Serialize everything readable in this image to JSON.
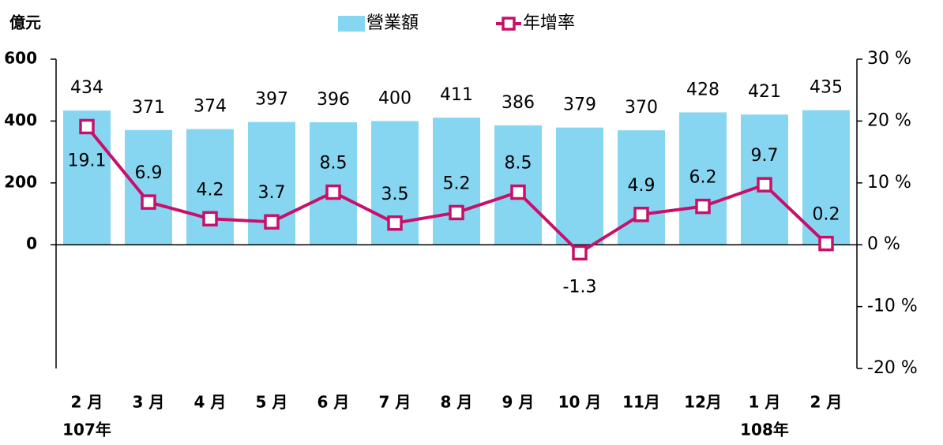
{
  "chart_data": {
    "type": "bar_line",
    "y_label": "億元",
    "categories": [
      "2 月",
      "3 月",
      "4 月",
      "5 月",
      "6 月",
      "7 月",
      "8 月",
      "9 月",
      "10 月",
      "11月",
      "12月",
      "1 月",
      "2 月"
    ],
    "year_labels": [
      "107年",
      null,
      null,
      null,
      null,
      null,
      null,
      null,
      null,
      null,
      null,
      "108年",
      null
    ],
    "series": [
      {
        "name": "營業額",
        "color": "#87d6f1",
        "values": [
          434,
          371,
          374,
          397,
          396,
          400,
          411,
          386,
          379,
          370,
          428,
          421,
          435
        ]
      },
      {
        "name": "年增率",
        "color": "#c8106a",
        "axis": "y2",
        "values": [
          19.1,
          6.9,
          4.2,
          3.7,
          8.5,
          3.5,
          5.2,
          8.5,
          -1.3,
          4.9,
          6.2,
          9.7,
          0.2
        ]
      }
    ],
    "ylim": [
      -400,
      600
    ],
    "yticks": [
      0,
      200,
      400,
      600
    ],
    "y2lim": [
      -20,
      30
    ],
    "y2ticks": [
      {
        "value": -20,
        "label": "-20 %"
      },
      {
        "value": -10,
        "label": "-10 %"
      },
      {
        "value": 0,
        "label": "0 %"
      },
      {
        "value": 10,
        "label": "10 %"
      },
      {
        "value": 20,
        "label": "20 %"
      },
      {
        "value": 30,
        "label": "30 %"
      }
    ],
    "legend": "top"
  }
}
